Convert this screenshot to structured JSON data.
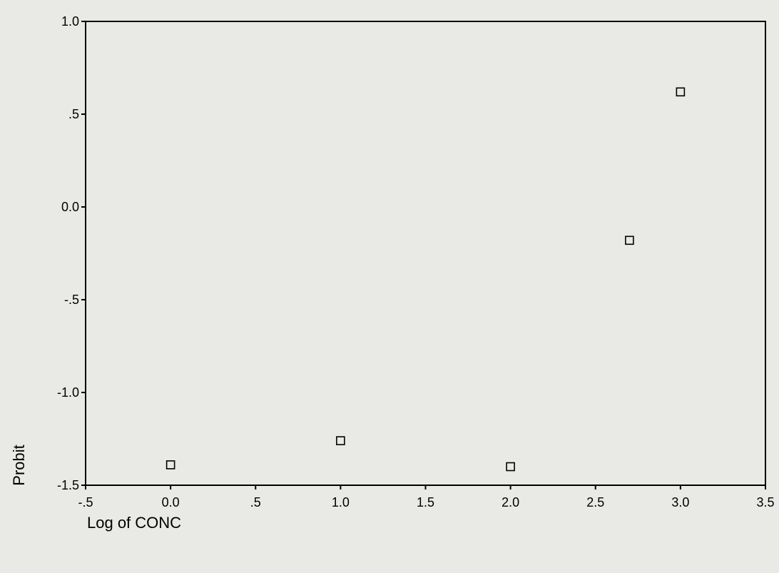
{
  "chart_data": {
    "type": "scatter",
    "xlabel": "Log of CONC",
    "ylabel": "Probit",
    "xlim": [
      -0.5,
      3.5
    ],
    "ylim": [
      -1.5,
      1.0
    ],
    "x_ticks": [
      -0.5,
      0.0,
      0.5,
      1.0,
      1.5,
      2.0,
      2.5,
      3.0,
      3.5
    ],
    "x_tick_labels": [
      "-.5",
      "0.0",
      ".5",
      "1.0",
      "1.5",
      "2.0",
      "2.5",
      "3.0",
      "3.5"
    ],
    "y_ticks": [
      1.0,
      0.5,
      0.0,
      -0.5,
      -1.0,
      -1.5
    ],
    "y_tick_labels": [
      "1.0",
      ".5",
      "0.0",
      "-.5",
      "-1.0",
      "-1.5"
    ],
    "grid": false,
    "marker": "open-square",
    "points": [
      {
        "x": 0.0,
        "y": -1.39
      },
      {
        "x": 1.0,
        "y": -1.26
      },
      {
        "x": 2.0,
        "y": -1.4
      },
      {
        "x": 2.7,
        "y": -0.18
      },
      {
        "x": 3.0,
        "y": 0.62
      }
    ]
  }
}
